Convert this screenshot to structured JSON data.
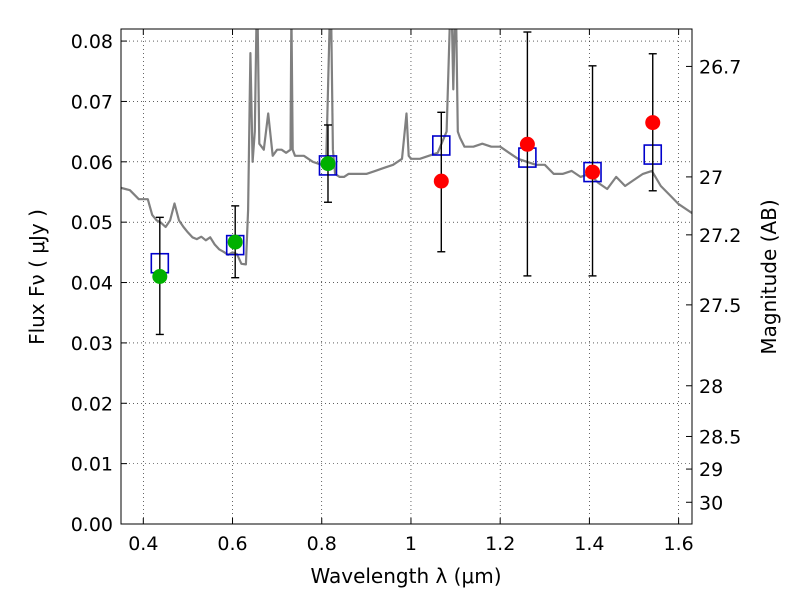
{
  "chart_data": {
    "type": "scatter",
    "xlabel": "Wavelength  λ (μm)",
    "ylabel": "Flux  Fν  ( μJy )",
    "ylabel_right": "Magnitude (AB)",
    "xlim": [
      0.35,
      1.63
    ],
    "ylim": [
      0.0,
      0.082
    ],
    "x_ticks": [
      0.4,
      0.6,
      0.8,
      1.0,
      1.2,
      1.4,
      1.6
    ],
    "x_tick_labels": [
      "0.4",
      "0.6",
      "0.8",
      "1",
      "1.2",
      "1.4",
      "1.6"
    ],
    "y_ticks": [
      0.0,
      0.01,
      0.02,
      0.03,
      0.04,
      0.05,
      0.06,
      0.07,
      0.08
    ],
    "y_tick_labels": [
      "0.00",
      "0.01",
      "0.02",
      "0.03",
      "0.04",
      "0.05",
      "0.06",
      "0.07",
      "0.08"
    ],
    "right_ticks": [
      {
        "label": "26.7",
        "flux": 0.0758
      },
      {
        "label": "27",
        "flux": 0.0575
      },
      {
        "label": "27.2",
        "flux": 0.0479
      },
      {
        "label": "27.5",
        "flux": 0.0363
      },
      {
        "label": "28",
        "flux": 0.0229
      },
      {
        "label": "28.5",
        "flux": 0.0145
      },
      {
        "label": "29",
        "flux": 0.0091
      },
      {
        "label": "30",
        "flux": 0.0036
      }
    ],
    "grid": true,
    "colors": {
      "spectrum": "#808080",
      "model": "#0000cc",
      "optical": "#00b000",
      "nir": "#ff0000",
      "errorbar": "#000000"
    },
    "series": [
      {
        "type": "line",
        "color": "#808080",
        "x": [
          0.35,
          0.37,
          0.39,
          0.41,
          0.42,
          0.43,
          0.44,
          0.45,
          0.46,
          0.47,
          0.48,
          0.49,
          0.5,
          0.51,
          0.52,
          0.53,
          0.54,
          0.55,
          0.56,
          0.57,
          0.58,
          0.59,
          0.6,
          0.61,
          0.62,
          0.63,
          0.635,
          0.64,
          0.645,
          0.65,
          0.655,
          0.66,
          0.67,
          0.68,
          0.69,
          0.7,
          0.71,
          0.72,
          0.73,
          0.732,
          0.735,
          0.74,
          0.76,
          0.78,
          0.8,
          0.81,
          0.82,
          0.825,
          0.83,
          0.84,
          0.85,
          0.86,
          0.88,
          0.9,
          0.92,
          0.94,
          0.96,
          0.98,
          0.99,
          0.995,
          1.0,
          1.02,
          1.04,
          1.06,
          1.08,
          1.09,
          1.095,
          1.1,
          1.105,
          1.11,
          1.12,
          1.14,
          1.16,
          1.18,
          1.2,
          1.22,
          1.24,
          1.26,
          1.28,
          1.3,
          1.32,
          1.34,
          1.36,
          1.38,
          1.4,
          1.42,
          1.44,
          1.46,
          1.48,
          1.5,
          1.52,
          1.54,
          1.56,
          1.58,
          1.6,
          1.63
        ],
        "values": [
          0.0557,
          0.0553,
          0.0538,
          0.0538,
          0.0512,
          0.0503,
          0.0499,
          0.0492,
          0.0503,
          0.0531,
          0.0503,
          0.0492,
          0.0483,
          0.0475,
          0.0472,
          0.0476,
          0.047,
          0.0475,
          0.0463,
          0.0455,
          0.0451,
          0.0446,
          0.045,
          0.0447,
          0.0431,
          0.043,
          0.052,
          0.078,
          0.06,
          0.065,
          0.09,
          0.063,
          0.062,
          0.068,
          0.061,
          0.062,
          0.062,
          0.0615,
          0.062,
          0.085,
          0.062,
          0.061,
          0.061,
          0.06,
          0.0595,
          0.06,
          0.09,
          0.062,
          0.058,
          0.0575,
          0.0575,
          0.058,
          0.058,
          0.058,
          0.0585,
          0.059,
          0.0595,
          0.0605,
          0.068,
          0.061,
          0.0605,
          0.0605,
          0.061,
          0.0615,
          0.065,
          0.09,
          0.072,
          0.09,
          0.065,
          0.064,
          0.0625,
          0.0625,
          0.063,
          0.0625,
          0.0625,
          0.0615,
          0.0605,
          0.06,
          0.0595,
          0.0595,
          0.058,
          0.058,
          0.0585,
          0.0575,
          0.058,
          0.0565,
          0.0555,
          0.0575,
          0.056,
          0.057,
          0.058,
          0.0585,
          0.056,
          0.0545,
          0.053,
          0.0515
        ]
      },
      {
        "type": "scatter",
        "marker": "open-square",
        "color": "#0000cc",
        "x": [
          0.437,
          0.606,
          0.814,
          1.068,
          1.261,
          1.407,
          1.542
        ],
        "values": [
          0.0432,
          0.0462,
          0.0594,
          0.0627,
          0.0607,
          0.0583,
          0.0612
        ]
      },
      {
        "type": "scatter",
        "marker": "circle",
        "color": "#00b000",
        "x": [
          0.437,
          0.606,
          0.814
        ],
        "values": [
          0.041,
          0.0467,
          0.0597
        ],
        "err_low": [
          0.0314,
          0.0408,
          0.0533
        ],
        "err_high": [
          0.0508,
          0.0527,
          0.0661
        ]
      },
      {
        "type": "scatter",
        "marker": "circle",
        "color": "#ff0000",
        "x": [
          1.068,
          1.261,
          1.407,
          1.542
        ],
        "values": [
          0.0568,
          0.0629,
          0.0583,
          0.0665
        ],
        "err_low": [
          0.0451,
          0.0411,
          0.0411,
          0.0552
        ],
        "err_high": [
          0.0682,
          0.0815,
          0.0759,
          0.0779
        ]
      }
    ]
  }
}
